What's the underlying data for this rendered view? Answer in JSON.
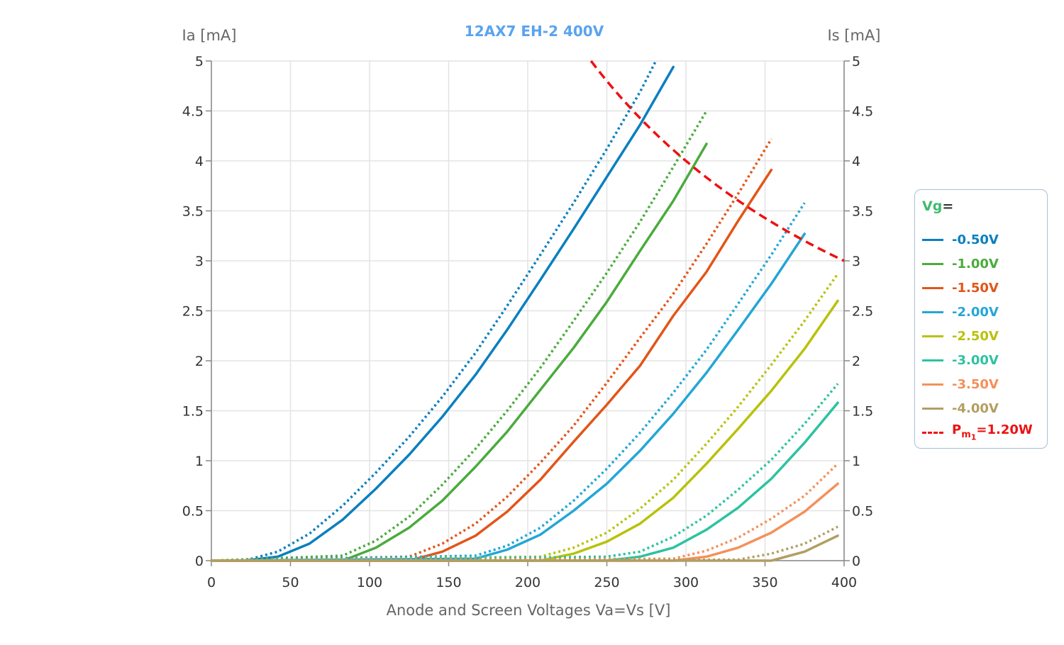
{
  "chart_data": {
    "type": "line",
    "title": "12AX7 EH-2 400V",
    "xlabel": "Anode and Screen Voltages Va=Vs [V]",
    "ylabel_left": "Ia [mA]",
    "ylabel_right": "Is [mA]",
    "xlim": [
      0,
      400
    ],
    "ylim": [
      0,
      5
    ],
    "x_ticks": [
      "0",
      "50",
      "100",
      "150",
      "200",
      "250",
      "300",
      "350",
      "400"
    ],
    "y_ticks": [
      "0",
      "0.5",
      "1",
      "1.5",
      "2",
      "2.5",
      "3",
      "3.5",
      "4",
      "4.5",
      "5"
    ],
    "grid": true,
    "legend_position": "right",
    "legend_title": "Vg",
    "legend_title_suffix": "=",
    "series": [
      {
        "name": "-0.50V",
        "color": "#0a7fc0",
        "solid": [
          [
            0,
            0
          ],
          [
            21,
            0
          ],
          [
            42,
            0.04
          ],
          [
            62,
            0.17
          ],
          [
            83,
            0.41
          ],
          [
            104,
            0.72
          ],
          [
            125,
            1.06
          ],
          [
            146,
            1.44
          ],
          [
            167,
            1.86
          ],
          [
            187,
            2.31
          ],
          [
            208,
            2.81
          ],
          [
            229,
            3.32
          ],
          [
            250,
            3.84
          ],
          [
            271,
            4.36
          ],
          [
            292,
            4.94
          ]
        ],
        "dotted": [
          [
            0,
            0
          ],
          [
            21,
            0
          ],
          [
            42,
            0.09
          ],
          [
            62,
            0.27
          ],
          [
            83,
            0.55
          ],
          [
            104,
            0.88
          ],
          [
            125,
            1.24
          ],
          [
            146,
            1.64
          ],
          [
            167,
            2.08
          ],
          [
            187,
            2.55
          ],
          [
            208,
            3.06
          ],
          [
            229,
            3.58
          ],
          [
            250,
            4.12
          ],
          [
            271,
            4.69
          ],
          [
            281,
            5.0
          ]
        ]
      },
      {
        "name": "-1.00V",
        "color": "#4aab3c",
        "solid": [
          [
            0,
            0
          ],
          [
            83,
            0
          ],
          [
            104,
            0.13
          ],
          [
            125,
            0.33
          ],
          [
            146,
            0.6
          ],
          [
            167,
            0.94
          ],
          [
            187,
            1.29
          ],
          [
            208,
            1.71
          ],
          [
            229,
            2.13
          ],
          [
            250,
            2.59
          ],
          [
            271,
            3.1
          ],
          [
            292,
            3.6
          ],
          [
            313,
            4.17
          ]
        ],
        "dotted": [
          [
            0,
            0
          ],
          [
            83,
            0.05
          ],
          [
            104,
            0.2
          ],
          [
            125,
            0.44
          ],
          [
            146,
            0.76
          ],
          [
            167,
            1.12
          ],
          [
            187,
            1.5
          ],
          [
            208,
            1.93
          ],
          [
            229,
            2.4
          ],
          [
            250,
            2.88
          ],
          [
            271,
            3.39
          ],
          [
            292,
            3.94
          ],
          [
            313,
            4.5
          ]
        ]
      },
      {
        "name": "-1.50V",
        "color": "#e25518",
        "solid": [
          [
            0,
            0
          ],
          [
            125,
            0
          ],
          [
            146,
            0.09
          ],
          [
            167,
            0.25
          ],
          [
            187,
            0.49
          ],
          [
            208,
            0.81
          ],
          [
            229,
            1.19
          ],
          [
            250,
            1.56
          ],
          [
            271,
            1.95
          ],
          [
            292,
            2.45
          ],
          [
            313,
            2.89
          ],
          [
            333,
            3.4
          ],
          [
            354,
            3.91
          ]
        ],
        "dotted": [
          [
            0,
            0
          ],
          [
            125,
            0.04
          ],
          [
            146,
            0.17
          ],
          [
            167,
            0.37
          ],
          [
            187,
            0.64
          ],
          [
            208,
            0.98
          ],
          [
            229,
            1.35
          ],
          [
            250,
            1.78
          ],
          [
            271,
            2.23
          ],
          [
            292,
            2.67
          ],
          [
            313,
            3.17
          ],
          [
            333,
            3.67
          ],
          [
            354,
            4.22
          ]
        ]
      },
      {
        "name": "-2.00V",
        "color": "#24a6d6",
        "solid": [
          [
            0,
            0
          ],
          [
            167,
            0.02
          ],
          [
            187,
            0.11
          ],
          [
            208,
            0.26
          ],
          [
            229,
            0.5
          ],
          [
            250,
            0.77
          ],
          [
            271,
            1.1
          ],
          [
            292,
            1.47
          ],
          [
            313,
            1.88
          ],
          [
            333,
            2.31
          ],
          [
            354,
            2.77
          ],
          [
            375,
            3.27
          ]
        ],
        "dotted": [
          [
            0,
            0
          ],
          [
            167,
            0.05
          ],
          [
            187,
            0.15
          ],
          [
            208,
            0.33
          ],
          [
            229,
            0.6
          ],
          [
            250,
            0.92
          ],
          [
            271,
            1.28
          ],
          [
            292,
            1.68
          ],
          [
            313,
            2.11
          ],
          [
            333,
            2.57
          ],
          [
            354,
            3.06
          ],
          [
            375,
            3.58
          ]
        ]
      },
      {
        "name": "-2.50V",
        "color": "#b8c20a",
        "solid": [
          [
            0,
            0
          ],
          [
            208,
            0
          ],
          [
            229,
            0.07
          ],
          [
            250,
            0.19
          ],
          [
            271,
            0.37
          ],
          [
            292,
            0.63
          ],
          [
            313,
            0.97
          ],
          [
            333,
            1.32
          ],
          [
            354,
            1.7
          ],
          [
            375,
            2.12
          ],
          [
            396,
            2.6
          ]
        ],
        "dotted": [
          [
            0,
            0
          ],
          [
            208,
            0.04
          ],
          [
            229,
            0.13
          ],
          [
            250,
            0.28
          ],
          [
            271,
            0.52
          ],
          [
            292,
            0.81
          ],
          [
            313,
            1.17
          ],
          [
            333,
            1.54
          ],
          [
            354,
            1.96
          ],
          [
            375,
            2.4
          ],
          [
            396,
            2.87
          ]
        ]
      },
      {
        "name": "-3.00V",
        "color": "#2dc2a0",
        "solid": [
          [
            0,
            0
          ],
          [
            250,
            0
          ],
          [
            271,
            0.04
          ],
          [
            292,
            0.13
          ],
          [
            313,
            0.31
          ],
          [
            333,
            0.53
          ],
          [
            354,
            0.82
          ],
          [
            375,
            1.18
          ],
          [
            396,
            1.58
          ]
        ],
        "dotted": [
          [
            0,
            0
          ],
          [
            250,
            0.04
          ],
          [
            271,
            0.09
          ],
          [
            292,
            0.24
          ],
          [
            313,
            0.45
          ],
          [
            333,
            0.71
          ],
          [
            354,
            1.01
          ],
          [
            375,
            1.37
          ],
          [
            396,
            1.77
          ]
        ]
      },
      {
        "name": "-3.50V",
        "color": "#f5905a",
        "solid": [
          [
            0,
            0
          ],
          [
            292,
            0
          ],
          [
            313,
            0.04
          ],
          [
            333,
            0.13
          ],
          [
            354,
            0.28
          ],
          [
            375,
            0.49
          ],
          [
            396,
            0.77
          ]
        ],
        "dotted": [
          [
            0,
            0
          ],
          [
            292,
            0.02
          ],
          [
            313,
            0.1
          ],
          [
            333,
            0.23
          ],
          [
            354,
            0.42
          ],
          [
            375,
            0.65
          ],
          [
            396,
            0.97
          ]
        ]
      },
      {
        "name": "-4.00V",
        "color": "#b29e62",
        "solid": [
          [
            0,
            0
          ],
          [
            354,
            0
          ],
          [
            375,
            0.09
          ],
          [
            396,
            0.25
          ]
        ],
        "dotted": [
          [
            0,
            0
          ],
          [
            333,
            0.01
          ],
          [
            354,
            0.07
          ],
          [
            375,
            0.17
          ],
          [
            396,
            0.34
          ]
        ]
      }
    ],
    "power_curve": {
      "label_prefix": "P",
      "label_sub1": "m",
      "label_sub2": "1",
      "label_suffix": "=1.20W",
      "color": "#ee1111",
      "watts": 1.2,
      "x_from": 240,
      "x_to": 400
    }
  }
}
